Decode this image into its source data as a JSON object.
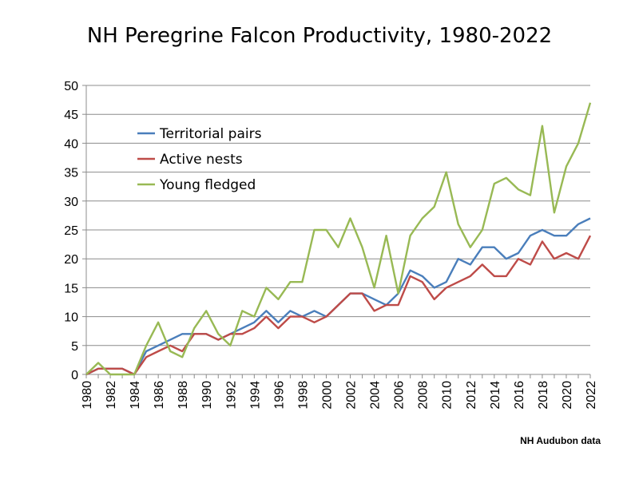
{
  "chart_data": {
    "type": "line",
    "title": "NH Peregrine Falcon Productivity, 1980-2022",
    "xlabel": "",
    "ylabel": "",
    "source_note": "NH Audubon data",
    "x": [
      1980,
      1981,
      1982,
      1983,
      1984,
      1985,
      1986,
      1987,
      1988,
      1989,
      1990,
      1991,
      1992,
      1993,
      1994,
      1995,
      1996,
      1997,
      1998,
      1999,
      2000,
      2001,
      2002,
      2003,
      2004,
      2005,
      2006,
      2007,
      2008,
      2009,
      2010,
      2011,
      2012,
      2013,
      2014,
      2015,
      2016,
      2017,
      2018,
      2019,
      2020,
      2021,
      2022
    ],
    "x_tick_labels": [
      "1980",
      "1982",
      "1984",
      "1986",
      "1988",
      "1990",
      "1992",
      "1994",
      "1996",
      "1998",
      "2000",
      "2002",
      "2004",
      "2006",
      "2008",
      "2010",
      "2012",
      "2014",
      "2016",
      "2018",
      "2020",
      "2022"
    ],
    "y_tick_labels": [
      "0",
      "5",
      "10",
      "15",
      "20",
      "25",
      "30",
      "35",
      "40",
      "45",
      "50"
    ],
    "xlim": [
      1980,
      2022
    ],
    "ylim": [
      0,
      50
    ],
    "grid": "horizontal",
    "legend_position": "top-left",
    "series": [
      {
        "name": "Territorial pairs",
        "color": "#4a7ebb",
        "values": [
          0,
          1,
          1,
          1,
          0,
          4,
          5,
          6,
          7,
          7,
          7,
          6,
          7,
          8,
          9,
          11,
          9,
          11,
          10,
          11,
          10,
          12,
          14,
          14,
          13,
          12,
          14,
          18,
          17,
          15,
          16,
          20,
          19,
          22,
          22,
          20,
          21,
          24,
          25,
          24,
          24,
          26,
          27
        ]
      },
      {
        "name": "Active nests",
        "color": "#be4b48",
        "values": [
          0,
          1,
          1,
          1,
          0,
          3,
          4,
          5,
          4,
          7,
          7,
          6,
          7,
          7,
          8,
          10,
          8,
          10,
          10,
          9,
          10,
          12,
          14,
          14,
          11,
          12,
          12,
          17,
          16,
          13,
          15,
          16,
          17,
          19,
          17,
          17,
          20,
          19,
          23,
          20,
          21,
          20,
          24
        ]
      },
      {
        "name": "Young fledged",
        "color": "#98b954",
        "values": [
          0,
          2,
          0,
          0,
          0,
          5,
          9,
          4,
          3,
          8,
          11,
          7,
          5,
          11,
          10,
          15,
          13,
          16,
          16,
          25,
          25,
          22,
          27,
          22,
          15,
          24,
          14,
          24,
          27,
          29,
          35,
          26,
          22,
          25,
          33,
          34,
          32,
          31,
          43,
          28,
          36,
          40,
          47
        ]
      }
    ]
  }
}
